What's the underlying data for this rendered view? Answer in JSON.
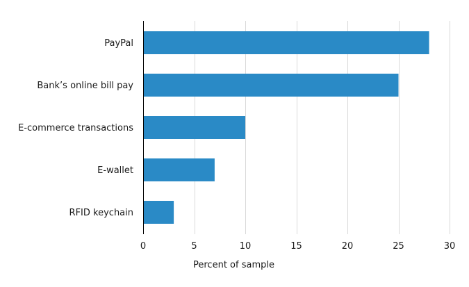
{
  "chart_data": {
    "type": "bar",
    "orientation": "horizontal",
    "title": "",
    "xlabel": "Percent of sample",
    "ylabel": "",
    "categories": [
      "PayPal",
      "Bank’s online bill pay",
      "E-commerce transactions",
      "E-wallet",
      "RFID keychain"
    ],
    "values": [
      28,
      25,
      10,
      7,
      3
    ],
    "xlim": [
      0,
      30
    ],
    "xticks": [
      0,
      5,
      10,
      15,
      20,
      25,
      30
    ],
    "xtick_labels": [
      "0",
      "5",
      "10",
      "15",
      "20",
      "25",
      "30"
    ],
    "grid": "vertical",
    "legend": "none",
    "bar_color": "#2a8ac6"
  }
}
